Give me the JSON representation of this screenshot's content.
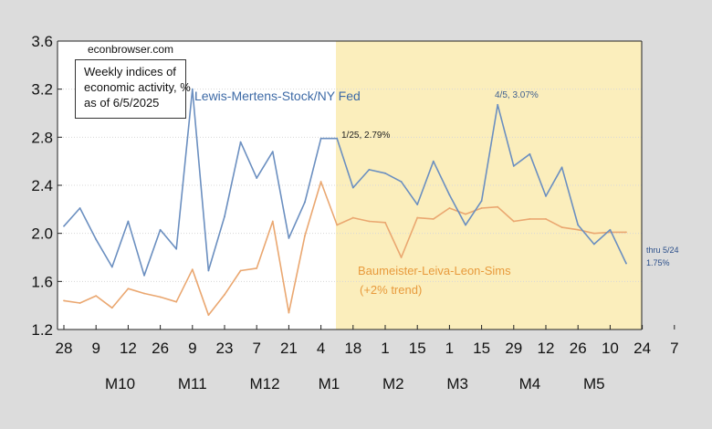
{
  "chart_data": {
    "type": "line",
    "source": "econbrowser.com",
    "note_lines": [
      "Weekly indices of",
      "economic activity, %",
      "as of 6/5/2025"
    ],
    "ylim": [
      1.2,
      3.6
    ],
    "yticks": [
      "1.2",
      "1.6",
      "2.0",
      "2.4",
      "2.8",
      "3.2",
      "3.6"
    ],
    "x_tick_labels": [
      "28",
      "9",
      "12",
      "26",
      "9",
      "23",
      "7",
      "21",
      "4",
      "18",
      "1",
      "15",
      "1",
      "15",
      "29",
      "12",
      "26",
      "10",
      "24",
      "7"
    ],
    "months": [
      "M10",
      "M11",
      "M12",
      "M1",
      "M2",
      "M3",
      "M4",
      "M5"
    ],
    "shaded_region": {
      "from": "2025-01-20",
      "to": "end",
      "color": "#fbeebc"
    },
    "series": [
      {
        "name": "Lewis-Mertens-Stock/NY Fed",
        "color": "#6b8fc0",
        "values": [
          2.06,
          2.21,
          1.95,
          1.72,
          2.1,
          1.65,
          2.03,
          1.87,
          3.2,
          1.69,
          2.14,
          2.76,
          2.46,
          2.68,
          1.96,
          2.26,
          2.79,
          2.79,
          2.38,
          2.53,
          2.5,
          2.43,
          2.24,
          2.6,
          2.32,
          2.07,
          2.27,
          3.07,
          2.56,
          2.66,
          2.31,
          2.55,
          2.07,
          1.91,
          2.03,
          1.75
        ]
      },
      {
        "name": "Baumeister-Leiva-Leon-Sims",
        "name_line2": "(+2% trend)",
        "color": "#eaa770",
        "values": [
          1.44,
          1.42,
          1.48,
          1.38,
          1.54,
          1.5,
          1.47,
          1.43,
          1.7,
          1.32,
          1.49,
          1.69,
          1.71,
          2.1,
          1.34,
          1.98,
          2.43,
          2.07,
          2.13,
          2.1,
          2.09,
          1.8,
          2.13,
          2.12,
          2.21,
          2.16,
          2.21,
          2.22,
          2.1,
          2.12,
          2.12,
          2.05,
          2.03,
          2.0,
          2.01,
          2.01
        ]
      }
    ],
    "annotations": [
      {
        "text": "1/25, 2.79%",
        "color": "#222222"
      },
      {
        "text": "4/5, 3.07%",
        "color": "#3f5f8f"
      },
      {
        "text": "thru 5/24",
        "color": "#2b4f8a"
      },
      {
        "text": "1.75%",
        "color": "#2b4f8a"
      }
    ]
  }
}
